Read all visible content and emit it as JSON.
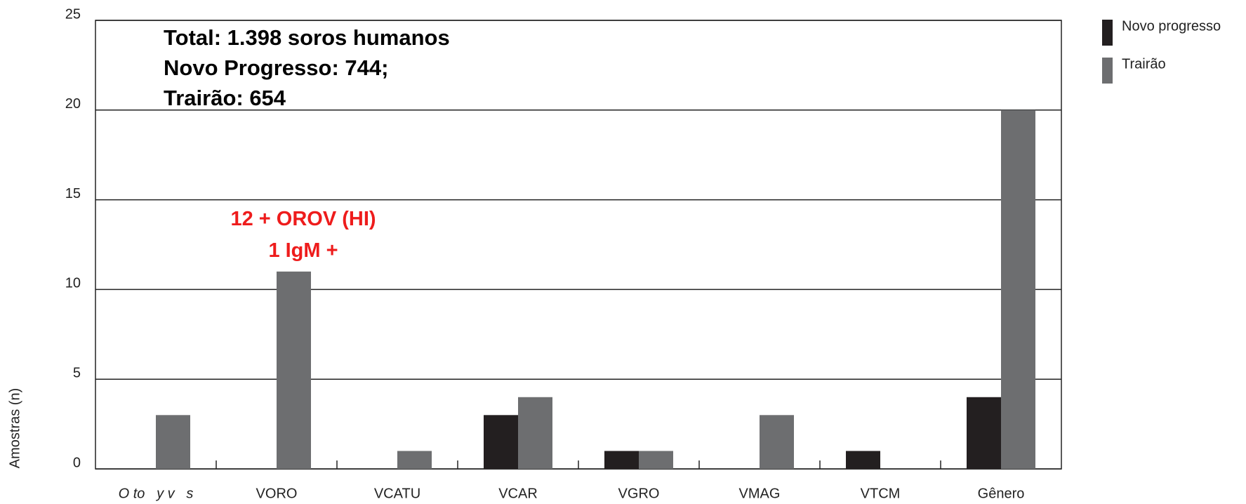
{
  "chart_data": {
    "type": "bar",
    "categories": [
      "O to   y v   s",
      "VORO",
      "VCATU",
      "VCAR",
      "VGRO",
      "VMAG",
      "VTCM",
      "Gênero"
    ],
    "series": [
      {
        "name": "Novo progresso",
        "color": "#231f20",
        "values": [
          0,
          0,
          0,
          3,
          1,
          0,
          1,
          4
        ]
      },
      {
        "name": "Trairão",
        "color": "#6d6e70",
        "values": [
          3,
          11,
          1,
          4,
          1,
          3,
          0,
          20
        ]
      }
    ],
    "y_label": "Amostras (n)",
    "ylim": [
      0,
      25
    ],
    "yticks": [
      0,
      5,
      10,
      15,
      20,
      25
    ],
    "grid": true,
    "annotations": [
      "Total: 1.398 soros humanos",
      "Novo Progresso: 744;",
      "Trairão: 654"
    ],
    "red_annotations": [
      "12 + OROV (HI)",
      "1 IgM +"
    ]
  }
}
